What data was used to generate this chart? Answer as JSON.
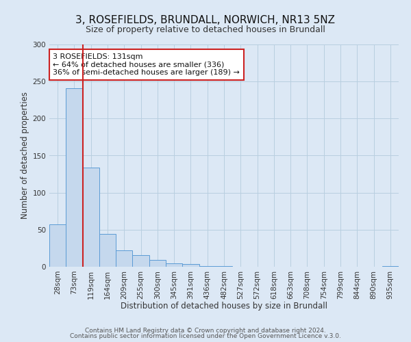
{
  "title": "3, ROSEFIELDS, BRUNDALL, NORWICH, NR13 5NZ",
  "subtitle": "Size of property relative to detached houses in Brundall",
  "xlabel": "Distribution of detached houses by size in Brundall",
  "ylabel": "Number of detached properties",
  "bar_labels": [
    "28sqm",
    "73sqm",
    "119sqm",
    "164sqm",
    "209sqm",
    "255sqm",
    "300sqm",
    "345sqm",
    "391sqm",
    "436sqm",
    "482sqm",
    "527sqm",
    "572sqm",
    "618sqm",
    "663sqm",
    "708sqm",
    "754sqm",
    "799sqm",
    "844sqm",
    "890sqm",
    "935sqm"
  ],
  "bar_values": [
    57,
    241,
    134,
    44,
    22,
    16,
    9,
    5,
    4,
    1,
    1,
    0,
    0,
    0,
    0,
    0,
    0,
    0,
    0,
    0,
    1
  ],
  "bar_color": "#c5d8ed",
  "bar_edge_color": "#5b9bd5",
  "ylim": [
    0,
    300
  ],
  "yticks": [
    0,
    50,
    100,
    150,
    200,
    250,
    300
  ],
  "vline_x": 1.5,
  "vline_color": "#cc2222",
  "annotation_box_text": "3 ROSEFIELDS: 131sqm\n← 64% of detached houses are smaller (336)\n36% of semi-detached houses are larger (189) →",
  "footer_line1": "Contains HM Land Registry data © Crown copyright and database right 2024.",
  "footer_line2": "Contains public sector information licensed under the Open Government Licence v.3.0.",
  "fig_bg_color": "#dce8f5",
  "plot_bg_color": "#dce8f5",
  "grid_color": "#b8cfe0",
  "title_fontsize": 11,
  "subtitle_fontsize": 9,
  "xlabel_fontsize": 8.5,
  "ylabel_fontsize": 8.5,
  "tick_fontsize": 7.5,
  "footer_fontsize": 6.5,
  "ann_fontsize": 8
}
